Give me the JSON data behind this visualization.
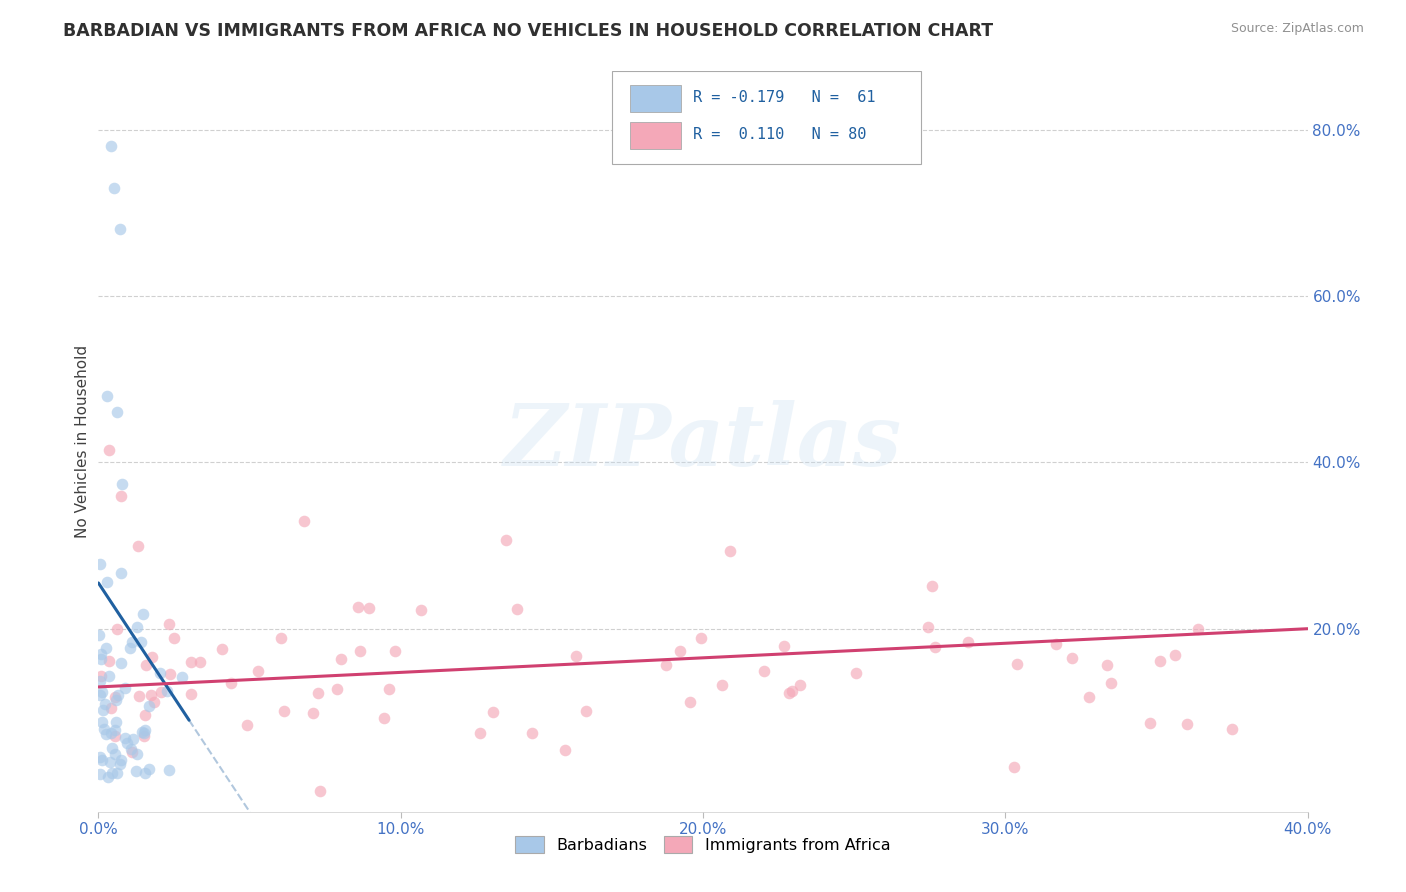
{
  "title": "BARBADIAN VS IMMIGRANTS FROM AFRICA NO VEHICLES IN HOUSEHOLD CORRELATION CHART",
  "source": "Source: ZipAtlas.com",
  "ylabel": "No Vehicles in Household",
  "xlim": [
    0.0,
    0.4
  ],
  "ylim": [
    -0.02,
    0.87
  ],
  "y_ticks_right": [
    0.2,
    0.4,
    0.6,
    0.8
  ],
  "y_tick_labels_right": [
    "20.0%",
    "40.0%",
    "60.0%",
    "80.0%"
  ],
  "x_ticks": [
    0.0,
    0.1,
    0.2,
    0.3,
    0.4
  ],
  "x_tick_labels": [
    "0.0%",
    "10.0%",
    "20.0%",
    "30.0%",
    "40.0%"
  ],
  "background_color": "#ffffff",
  "grid_color": "#d0d0d0",
  "watermark_text": "ZIPatlas",
  "blue_color": "#a8c8e8",
  "pink_color": "#f4a8b8",
  "blue_line_color": "#2060a0",
  "pink_line_color": "#d04070",
  "dot_size": 70,
  "dot_alpha": 0.65,
  "tick_color": "#4472c4",
  "title_color": "#303030",
  "ylabel_color": "#404040",
  "source_color": "#909090"
}
